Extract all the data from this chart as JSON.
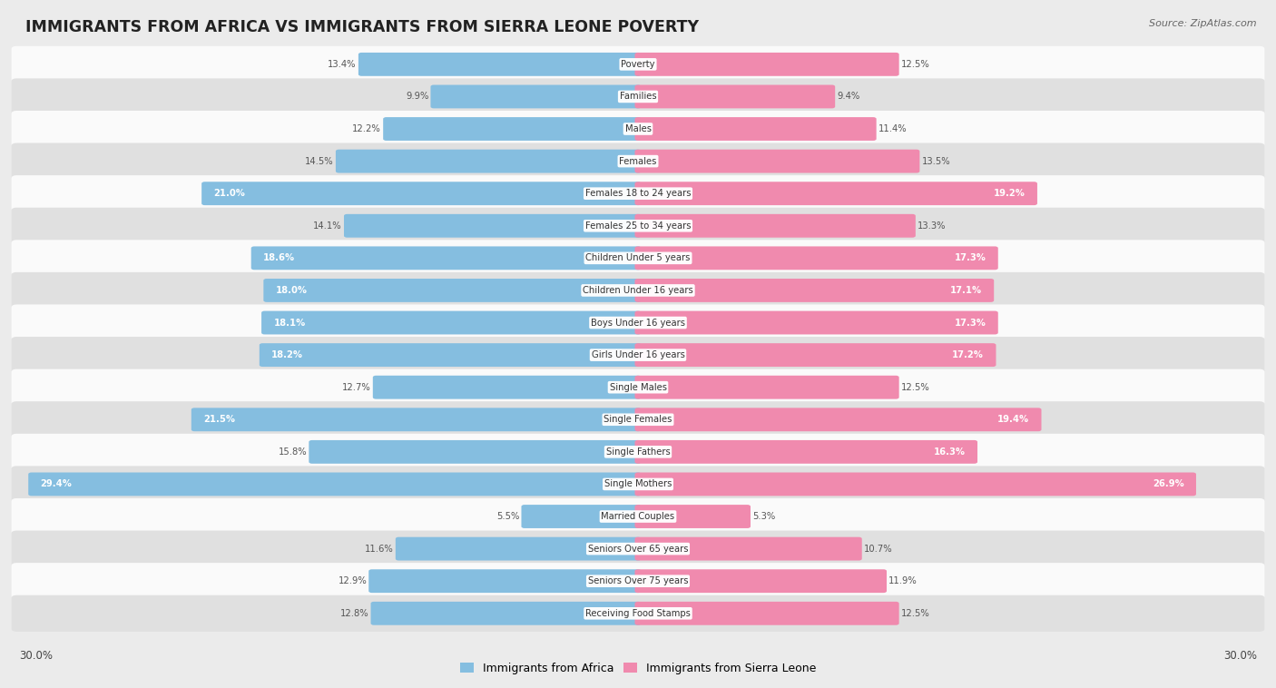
{
  "title": "IMMIGRANTS FROM AFRICA VS IMMIGRANTS FROM SIERRA LEONE POVERTY",
  "source": "Source: ZipAtlas.com",
  "categories": [
    "Poverty",
    "Families",
    "Males",
    "Females",
    "Females 18 to 24 years",
    "Females 25 to 34 years",
    "Children Under 5 years",
    "Children Under 16 years",
    "Boys Under 16 years",
    "Girls Under 16 years",
    "Single Males",
    "Single Females",
    "Single Fathers",
    "Single Mothers",
    "Married Couples",
    "Seniors Over 65 years",
    "Seniors Over 75 years",
    "Receiving Food Stamps"
  ],
  "africa_values": [
    13.4,
    9.9,
    12.2,
    14.5,
    21.0,
    14.1,
    18.6,
    18.0,
    18.1,
    18.2,
    12.7,
    21.5,
    15.8,
    29.4,
    5.5,
    11.6,
    12.9,
    12.8
  ],
  "sierra_leone_values": [
    12.5,
    9.4,
    11.4,
    13.5,
    19.2,
    13.3,
    17.3,
    17.1,
    17.3,
    17.2,
    12.5,
    19.4,
    16.3,
    26.9,
    5.3,
    10.7,
    11.9,
    12.5
  ],
  "africa_color": "#85BEE0",
  "sierra_leone_color": "#F08AAE",
  "bg_color": "#EBEBEB",
  "row_bg_light": "#FAFAFA",
  "row_bg_dark": "#E0E0E0",
  "max_val": 30.0,
  "axis_label_left": "30.0%",
  "axis_label_right": "30.0%",
  "legend_africa": "Immigrants from Africa",
  "legend_sierra_leone": "Immigrants from Sierra Leone",
  "white_text_threshold": 16.0
}
